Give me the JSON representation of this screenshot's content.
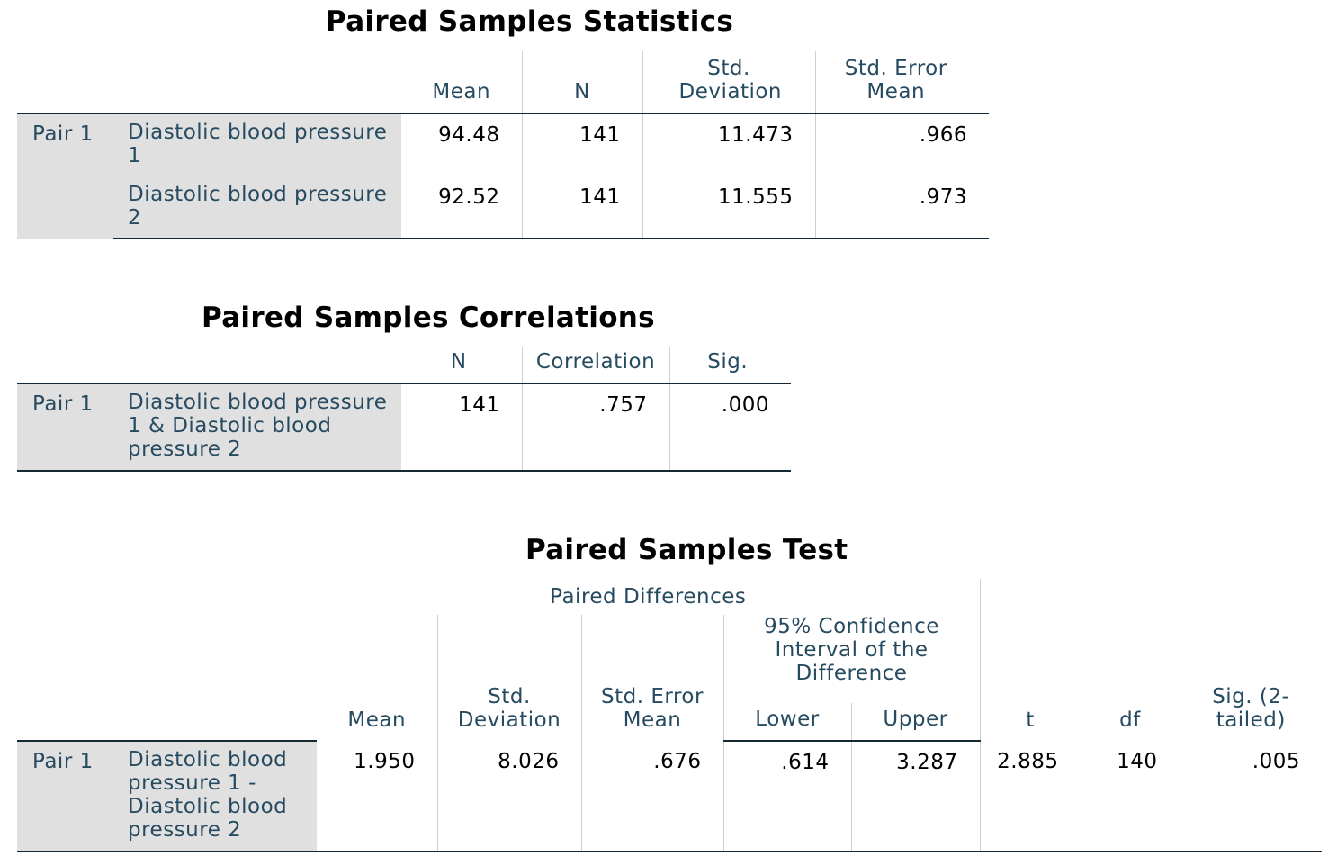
{
  "stats": {
    "title": "Paired Samples Statistics",
    "headers": {
      "mean": "Mean",
      "n": "N",
      "std_dev": "Std. Deviation",
      "std_err": "Std. Error Mean"
    },
    "pair_label": "Pair 1",
    "rows": [
      {
        "variable": "Diastolic blood pressure 1",
        "mean": "94.48",
        "n": "141",
        "std_dev": "11.473",
        "std_err": ".966"
      },
      {
        "variable": "Diastolic blood pressure 2",
        "mean": "92.52",
        "n": "141",
        "std_dev": "11.555",
        "std_err": ".973"
      }
    ]
  },
  "corr": {
    "title": "Paired Samples Correlations",
    "headers": {
      "n": "N",
      "correlation": "Correlation",
      "sig": "Sig."
    },
    "pair_label": "Pair 1",
    "row": {
      "variable": "Diastolic blood pressure 1 & Diastolic blood pressure 2",
      "n": "141",
      "correlation": ".757",
      "sig": ".000"
    }
  },
  "test": {
    "title": "Paired Samples Test",
    "headers": {
      "paired_differences": "Paired Differences",
      "mean": "Mean",
      "std_dev": "Std. Deviation",
      "std_err": "Std. Error Mean",
      "ci": "95% Confidence Interval of the Difference",
      "lower": "Lower",
      "upper": "Upper",
      "t": "t",
      "df": "df",
      "sig": "Sig. (2-tailed)"
    },
    "pair_label": "Pair 1",
    "row": {
      "variable": "Diastolic blood pressure 1 - Diastolic blood pressure 2",
      "mean": "1.950",
      "std_dev": "8.026",
      "std_err": ".676",
      "lower": ".614",
      "upper": "3.287",
      "t": "2.885",
      "df": "140",
      "sig": ".005"
    }
  }
}
